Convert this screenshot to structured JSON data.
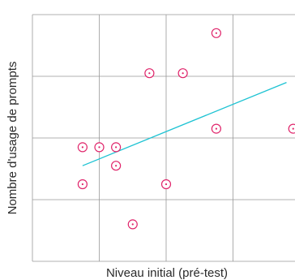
{
  "chart_data": {
    "type": "scatter",
    "title": "",
    "xlabel": "Niveau initial (pré-test)",
    "ylabel": "Nombre d'usage de prompts",
    "xlim": [
      0,
      4.0
    ],
    "ylim": [
      0,
      4.0
    ],
    "grid": true,
    "tick_labels_shown": false,
    "points": [
      {
        "x": 0.75,
        "y": 1.85
      },
      {
        "x": 1.0,
        "y": 1.85
      },
      {
        "x": 1.25,
        "y": 1.85
      },
      {
        "x": 1.25,
        "y": 1.55
      },
      {
        "x": 0.75,
        "y": 1.25
      },
      {
        "x": 2.0,
        "y": 1.25
      },
      {
        "x": 1.5,
        "y": 0.6
      },
      {
        "x": 1.75,
        "y": 3.05
      },
      {
        "x": 2.25,
        "y": 3.05
      },
      {
        "x": 2.75,
        "y": 3.7
      },
      {
        "x": 2.75,
        "y": 2.15
      },
      {
        "x": 3.9,
        "y": 2.15
      }
    ],
    "trendline": {
      "x": [
        0.75,
        3.8
      ],
      "y": [
        1.55,
        2.9
      ]
    },
    "colors": {
      "points": "#e0256b",
      "trendline": "#1ec3d3",
      "grid": "#999999",
      "text": "#2a2a2a"
    }
  }
}
